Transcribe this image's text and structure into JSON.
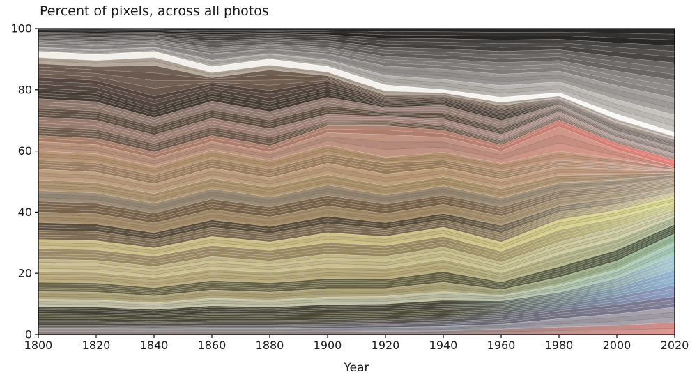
{
  "figure": {
    "title": "Percent of pixels, across all photos",
    "xlabel": "Year"
  },
  "chart_data": {
    "type": "area",
    "stacked": true,
    "title": "Percent of pixels, across all photos",
    "xlabel": "Year",
    "ylabel": "",
    "xlim": [
      1800,
      2020
    ],
    "ylim": [
      0,
      100
    ],
    "grid": false,
    "legend": "none",
    "x": [
      1800,
      1820,
      1840,
      1860,
      1880,
      1900,
      1920,
      1940,
      1960,
      1980,
      2000,
      2020
    ],
    "xticks": [
      "1800",
      "1820",
      "1840",
      "1860",
      "1880",
      "1900",
      "1920",
      "1940",
      "1960",
      "1980",
      "2000",
      "2020"
    ],
    "yticks": [
      "0",
      "20",
      "40",
      "60",
      "80",
      "100"
    ],
    "note": "Color-band stream: series listed bottom-to-top. 'top' = cumulative stacked boundary (percent of pixels) at each year; band value = top minus previous top. 'colors' = [left(1800), mid(~1940), right(2020)] fill colors; 'bands' = number of thin sub-stripes the region shows.",
    "series": [
      {
        "name": "pink-gray-base",
        "colors": [
          "#96888a",
          "#9c8d8d",
          "#df9791"
        ],
        "bands": 2,
        "top": [
          0.8,
          0.8,
          0.8,
          0.8,
          0.8,
          0.9,
          1.0,
          1.2,
          1.8,
          2.5,
          3.0,
          4.0
        ]
      },
      {
        "name": "slate-strip",
        "colors": [
          "#aaa29e",
          "#9698a2",
          "#aaa4ae"
        ],
        "bands": 3,
        "top": [
          2.0,
          2.0,
          1.9,
          2.0,
          2.0,
          2.2,
          2.4,
          2.7,
          3.4,
          5.2,
          6.8,
          9.0
        ]
      },
      {
        "name": "dark-slate",
        "colors": [
          "#5e5a56",
          "#63626a",
          "#7e7c96"
        ],
        "bands": 3,
        "top": [
          3.2,
          3.2,
          3.0,
          3.2,
          3.2,
          3.4,
          3.7,
          4.2,
          5.2,
          7.8,
          9.8,
          12.5
        ]
      },
      {
        "name": "olive-to-periwinkle",
        "colors": [
          "#4c4a3e",
          "#54524a",
          "#8c9cc2"
        ],
        "bands": 3,
        "top": [
          4.6,
          4.6,
          4.3,
          4.6,
          4.6,
          4.9,
          5.3,
          6.1,
          7.1,
          9.6,
          12.4,
          16.2
        ]
      },
      {
        "name": "dark-olive-to-blue",
        "colors": [
          "#44432f",
          "#4b4934",
          "#93b4d2"
        ],
        "bands": 4,
        "top": [
          7.0,
          6.8,
          6.3,
          7.1,
          6.9,
          7.5,
          7.7,
          8.6,
          9.2,
          11.8,
          15.4,
          21.2
        ]
      },
      {
        "name": "dark-olive-to-paleblue",
        "colors": [
          "#3d3e2e",
          "#454635",
          "#a8c8d2"
        ],
        "bands": 4,
        "top": [
          9.2,
          9.0,
          8.2,
          9.4,
          9.0,
          9.8,
          10.0,
          11.2,
          11.0,
          13.8,
          18.4,
          26.0
        ]
      },
      {
        "name": "sage-light-to-mint",
        "colors": [
          "#c8c5ac",
          "#c2c2a6",
          "#abcfc0"
        ],
        "bands": 3,
        "top": [
          11.6,
          11.3,
          10.3,
          11.9,
          11.3,
          12.3,
          12.5,
          14.1,
          12.7,
          16.2,
          21.2,
          30.0
        ]
      },
      {
        "name": "khaki-to-green",
        "colors": [
          "#b2a87e",
          "#aea57a",
          "#9cbfa0"
        ],
        "bands": 3,
        "top": [
          14.1,
          13.9,
          12.6,
          14.6,
          13.9,
          15.1,
          15.1,
          17.1,
          14.7,
          18.7,
          24.1,
          33.0
        ]
      },
      {
        "name": "olive-stripes",
        "colors": [
          "#696244",
          "#615d3d",
          "#53604a"
        ],
        "bands": 5,
        "top": [
          17.1,
          16.9,
          15.3,
          17.7,
          16.9,
          18.3,
          18.1,
          20.6,
          17.2,
          22.2,
          27.6,
          36.0
        ]
      },
      {
        "name": "khaki-2",
        "colors": [
          "#bfb083",
          "#bbaf7e",
          "#b8c4a0"
        ],
        "bands": 4,
        "top": [
          20.6,
          20.3,
          18.6,
          21.3,
          20.3,
          22.1,
          21.6,
          24.6,
          20.2,
          26.2,
          31.1,
          38.5
        ]
      },
      {
        "name": "pale-khaki",
        "colors": [
          "#cfc295",
          "#cbc290",
          "#d6d6b0"
        ],
        "bands": 4,
        "top": [
          24.6,
          24.3,
          22.3,
          25.5,
          24.1,
          26.3,
          25.6,
          28.6,
          23.7,
          30.2,
          35.1,
          41.0
        ]
      },
      {
        "name": "tan-stripes-to-yellow",
        "colors": [
          "#998862",
          "#95855c",
          "#caca8c"
        ],
        "bands": 4,
        "top": [
          28.1,
          27.7,
          25.6,
          29.1,
          27.5,
          30.1,
          29.1,
          32.1,
          27.2,
          34.2,
          38.1,
          43.0
        ]
      },
      {
        "name": "pale-yellow",
        "colors": [
          "#cec08a",
          "#cfc388",
          "#e2e198"
        ],
        "bands": 3,
        "top": [
          31.1,
          30.7,
          28.3,
          32.1,
          30.3,
          33.3,
          32.1,
          35.1,
          30.2,
          37.6,
          40.6,
          45.0
        ]
      },
      {
        "name": "brown-1",
        "colors": [
          "#7c6a50",
          "#78664c",
          "#cec398"
        ],
        "bands": 4,
        "top": [
          34.1,
          33.7,
          31.1,
          35.1,
          33.1,
          36.3,
          34.6,
          37.6,
          33.2,
          40.1,
          42.6,
          46.5
        ]
      },
      {
        "name": "dark-brown-1",
        "colors": [
          "#5a4d3c",
          "#574a36",
          "#b7ac94"
        ],
        "bands": 3,
        "top": [
          36.6,
          36.1,
          33.3,
          37.5,
          35.3,
          38.7,
          36.6,
          39.6,
          35.7,
          42.1,
          44.6,
          48.0
        ]
      },
      {
        "name": "tan-2",
        "colors": [
          "#aa9270",
          "#a78f6a",
          "#c1b39a"
        ],
        "bands": 4,
        "top": [
          40.1,
          39.5,
          36.5,
          40.9,
          38.5,
          42.1,
          39.6,
          42.6,
          38.7,
          44.6,
          46.6,
          49.5
        ]
      },
      {
        "name": "brown-stripes-2",
        "colors": [
          "#766148",
          "#735d42",
          "#aa9984"
        ],
        "bands": 4,
        "top": [
          43.6,
          42.9,
          39.7,
          44.3,
          41.7,
          45.5,
          42.6,
          45.6,
          41.7,
          47.1,
          48.6,
          51.0
        ]
      },
      {
        "name": "gray-tan",
        "colors": [
          "#9c8d7a",
          "#998972",
          "#b3a390"
        ],
        "bands": 3,
        "top": [
          47.1,
          46.3,
          42.9,
          47.7,
          44.9,
          48.9,
          45.6,
          48.6,
          44.7,
          49.6,
          50.6,
          52.3
        ]
      },
      {
        "name": "tan-3",
        "colors": [
          "#b39976",
          "#b1976d",
          "#bfa38c"
        ],
        "bands": 4,
        "top": [
          50.6,
          49.7,
          46.1,
          51.1,
          48.1,
          52.3,
          48.6,
          51.6,
          47.7,
          52.1,
          52.4,
          52.9
        ]
      },
      {
        "name": "salmon-tan",
        "colors": [
          "#bfa082",
          "#be9e7a",
          "#cea692"
        ],
        "bands": 3,
        "top": [
          54.1,
          53.1,
          49.3,
          54.5,
          51.3,
          56.0,
          52.5,
          54.6,
          50.7,
          55.0,
          54.1,
          53.3
        ]
      },
      {
        "name": "brown-2",
        "colors": [
          "#997c60",
          "#977956",
          "#c39988"
        ],
        "bands": 4,
        "top": [
          57.1,
          56.1,
          52.1,
          57.5,
          54.1,
          59.0,
          56.0,
          57.1,
          53.5,
          57.0,
          55.8,
          53.8
        ]
      },
      {
        "name": "light-brown",
        "colors": [
          "#b89776",
          "#b69470",
          "#d4a190"
        ],
        "bands": 3,
        "top": [
          60.1,
          59.1,
          54.9,
          60.3,
          56.9,
          62.0,
          58.0,
          59.6,
          56.0,
          60.0,
          57.5,
          54.3
        ]
      },
      {
        "name": "salmon",
        "colors": [
          "#bc957e",
          "#c09384",
          "#df998c"
        ],
        "bands": 3,
        "top": [
          63.1,
          62.1,
          57.7,
          63.1,
          59.7,
          66.0,
          65.4,
          64.5,
          60.0,
          68.0,
          60.4,
          54.8
        ]
      },
      {
        "name": "red-band",
        "colors": [
          "#a47c66",
          "#b07d6c",
          "#e3827a"
        ],
        "bands": 2,
        "top": [
          65.1,
          64.1,
          59.7,
          65.1,
          61.7,
          68.3,
          68.3,
          66.8,
          62.0,
          70.2,
          62.6,
          57.2
        ]
      },
      {
        "name": "dark-brown-3",
        "colors": [
          "#6d594a",
          "#6a5544",
          "#897a72"
        ],
        "bands": 4,
        "top": [
          68.1,
          67.1,
          62.5,
          67.9,
          64.5,
          69.6,
          69.8,
          68.5,
          63.5,
          71.5,
          63.6,
          58.2
        ]
      },
      {
        "name": "mauve-pink",
        "colors": [
          "#97796c",
          "#a08078",
          "#b29a94"
        ],
        "bands": 3,
        "top": [
          71.1,
          70.1,
          65.3,
          70.7,
          67.3,
          72.0,
          71.3,
          70.5,
          65.5,
          73.0,
          64.6,
          59.2
        ]
      },
      {
        "name": "dark-brown-4",
        "colors": [
          "#5e4e41",
          "#5b4a3c",
          "#786a64"
        ],
        "bands": 4,
        "top": [
          74.1,
          73.1,
          68.1,
          73.5,
          70.1,
          74.8,
          72.8,
          72.5,
          67.5,
          74.3,
          65.6,
          60.2
        ]
      },
      {
        "name": "mauve-2",
        "colors": [
          "#8a7468",
          "#927a70",
          "#a08f88"
        ],
        "bands": 3,
        "top": [
          77.1,
          76.1,
          70.9,
          76.3,
          72.9,
          77.6,
          74.3,
          75.0,
          70.0,
          75.3,
          66.6,
          61.2
        ]
      },
      {
        "name": "very-dark-stripes",
        "colors": [
          "#453b33",
          "#42382e",
          "#5e544e"
        ],
        "bands": 4,
        "top": [
          80.6,
          79.6,
          74.1,
          79.5,
          76.1,
          80.4,
          75.6,
          76.6,
          72.0,
          76.1,
          67.4,
          62.0
        ]
      },
      {
        "name": "dark-brown-5",
        "colors": [
          "#544640",
          "#514238",
          "#6e6058"
        ],
        "bands": 3,
        "top": [
          84.1,
          83.1,
          78.0,
          82.0,
          79.8,
          82.7,
          76.8,
          77.6,
          73.3,
          76.7,
          68.2,
          62.8
        ]
      },
      {
        "name": "below-white-brown",
        "colors": [
          "#6c5a50",
          "#695646",
          "#8d7d74"
        ],
        "bands": 4,
        "top": [
          88.6,
          87.6,
          88.0,
          84.0,
          86.5,
          84.6,
          78.3,
          78.4,
          74.9,
          77.3,
          69.2,
          63.8
        ]
      },
      {
        "name": "white-lower-fringe",
        "colors": [
          "#b7ab9e",
          "#b3a89a",
          "#cfc8c0"
        ],
        "bands": 2,
        "top": [
          90.6,
          89.6,
          90.6,
          85.6,
          88.1,
          85.8,
          79.6,
          79.0,
          75.9,
          78.0,
          70.4,
          64.8
        ]
      },
      {
        "name": "white-highlight-band",
        "colors": [
          "#f2efe9",
          "#f4f2ee",
          "#fafaf8"
        ],
        "bands": 1,
        "top": [
          92.6,
          91.6,
          92.6,
          87.6,
          90.1,
          87.7,
          81.6,
          80.1,
          77.6,
          79.1,
          72.1,
          66.1
        ]
      },
      {
        "name": "gray-1-light",
        "colors": [
          "#b2aeaa",
          "#b4b1ad",
          "#c8c5c1"
        ],
        "bands": 3,
        "top": [
          93.9,
          93.0,
          93.9,
          89.7,
          91.8,
          89.8,
          84.7,
          83.4,
          81.4,
          82.6,
          76.8,
          71.8
        ]
      },
      {
        "name": "gray-2",
        "colors": [
          "#949090",
          "#969391",
          "#a8a5a3"
        ],
        "bands": 3,
        "top": [
          95.1,
          94.4,
          95.1,
          91.8,
          93.4,
          91.8,
          87.8,
          86.8,
          85.1,
          86.1,
          81.4,
          77.4
        ]
      },
      {
        "name": "gray-3",
        "colors": [
          "#787472",
          "#7a7775",
          "#8a8785"
        ],
        "bands": 3,
        "top": [
          96.4,
          95.8,
          96.4,
          93.9,
          95.1,
          93.9,
          90.9,
          90.1,
          88.9,
          89.6,
          86.1,
          83.1
        ]
      },
      {
        "name": "gray-4",
        "colors": [
          "#5c5856",
          "#5e5b59",
          "#6b6866"
        ],
        "bands": 3,
        "top": [
          97.6,
          97.2,
          97.6,
          96.0,
          96.8,
          96.0,
          93.9,
          93.4,
          92.6,
          93.1,
          90.8,
          88.8
        ]
      },
      {
        "name": "gray-5-dark",
        "colors": [
          "#403d3b",
          "#423f3d",
          "#4a4745"
        ],
        "bands": 3,
        "top": [
          98.8,
          98.6,
          98.8,
          98.0,
          98.4,
          98.0,
          96.9,
          96.7,
          96.3,
          96.5,
          95.4,
          94.4
        ]
      },
      {
        "name": "near-black-top",
        "colors": [
          "#262422",
          "#272523",
          "#2b2927"
        ],
        "bands": 3,
        "top": [
          100,
          100,
          100,
          100,
          100,
          100,
          100,
          100,
          100,
          100,
          100,
          100
        ]
      }
    ]
  }
}
